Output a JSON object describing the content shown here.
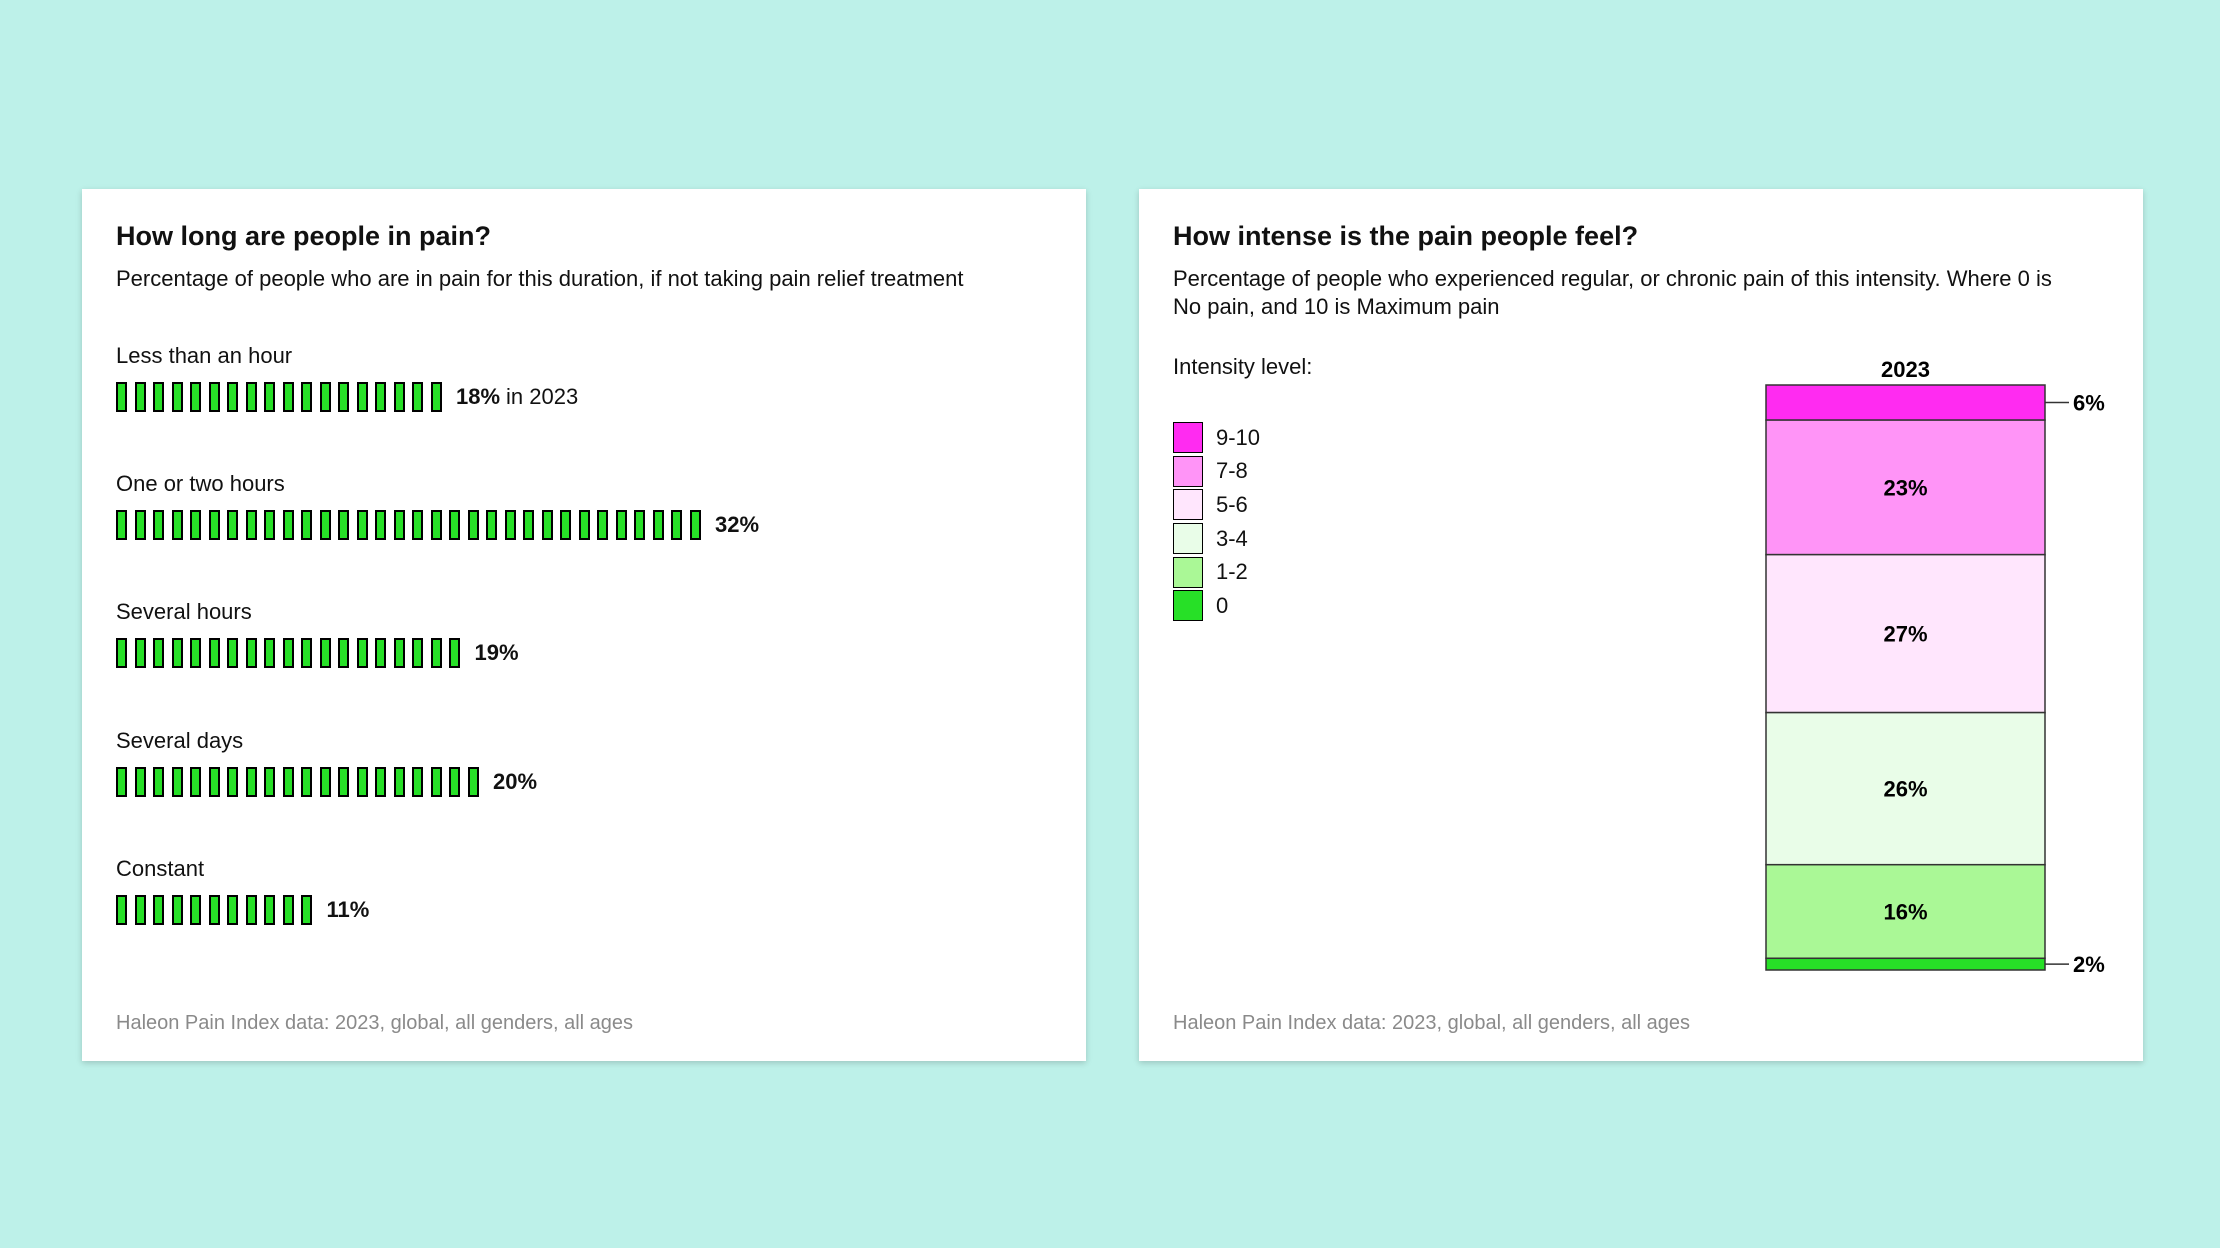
{
  "colors": {
    "background": "#bdf1e9",
    "bar_green": "#27e027",
    "footer_grey": "#8a8a8a"
  },
  "left_card": {
    "title": "How long are people in pain?",
    "subtitle": "Percentage of people who are in pain for this duration, if not taking pain relief treatment",
    "footer": "Haleon Pain Index data: 2023, global, all genders, all ages",
    "value_suffix_first": "in 2023"
  },
  "right_card": {
    "title": "How intense is the pain people feel?",
    "subtitle": "Percentage of people who experienced regular, or chronic pain of this intensity. Where 0 is No pain, and 10 is Maximum pain",
    "footer": "Haleon Pain Index data: 2023, global, all genders, all ages",
    "legend_title": "Intensity level:"
  },
  "chart_data": [
    {
      "type": "bar",
      "title": "How long are people in pain?",
      "categories": [
        "Less than an hour",
        "One or two hours",
        "Several hours",
        "Several days",
        "Constant"
      ],
      "values": [
        18,
        32,
        19,
        20,
        11
      ],
      "value_labels": [
        "18%",
        "32%",
        "19%",
        "20%",
        "11%"
      ],
      "unit": "%"
    },
    {
      "type": "bar",
      "stacked": true,
      "title": "How intense is the pain people feel?",
      "categories": [
        "2023"
      ],
      "legend_title": "Intensity level:",
      "series": [
        {
          "name": "9-10",
          "value": 6,
          "label": "6%",
          "color": "#ff2bf1"
        },
        {
          "name": "7-8",
          "value": 23,
          "label": "23%",
          "color": "#ff94f7"
        },
        {
          "name": "5-6",
          "value": 27,
          "label": "27%",
          "color": "#ffe6fd"
        },
        {
          "name": "3-4",
          "value": 26,
          "label": "26%",
          "color": "#e9fde8"
        },
        {
          "name": "1-2",
          "value": 16,
          "label": "16%",
          "color": "#aaf896"
        },
        {
          "name": "0",
          "value": 2,
          "label": "2%",
          "color": "#27e027"
        }
      ]
    }
  ]
}
